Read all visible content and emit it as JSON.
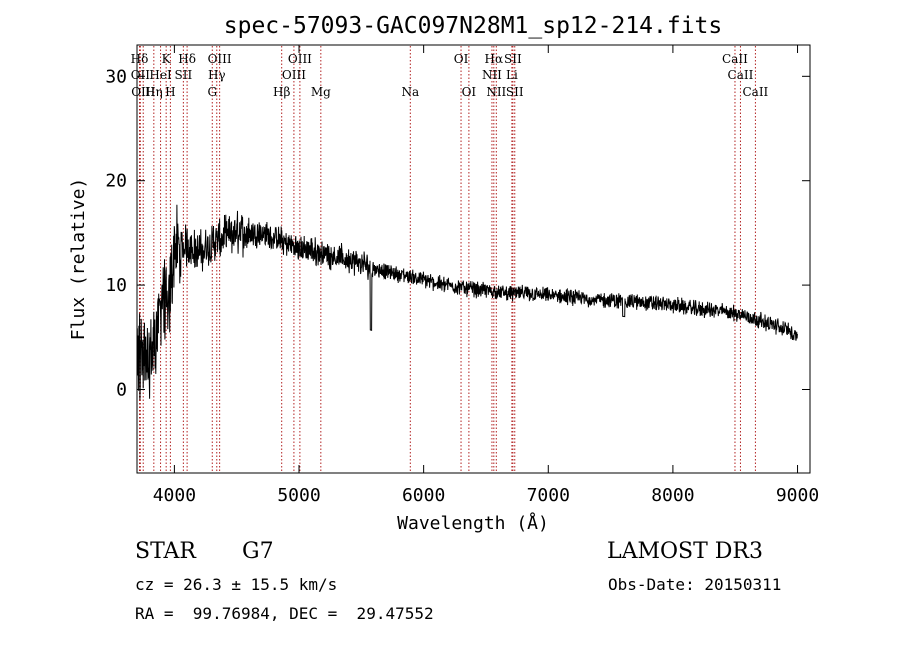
{
  "chart_data": {
    "type": "line",
    "title": "spec-57093-GAC097N28M1_sp12-214.fits",
    "xlabel": "Wavelength (Å)",
    "ylabel": "Flux (relative)",
    "xlim": [
      3700,
      9100
    ],
    "ylim": [
      -8,
      33
    ],
    "x_ticks": [
      4000,
      5000,
      6000,
      7000,
      8000,
      9000
    ],
    "x_tick_labels": [
      "4000",
      "5000",
      "6000",
      "7000",
      "8000",
      "9000"
    ],
    "y_ticks": [
      0,
      10,
      20,
      30
    ],
    "y_tick_labels": [
      "0",
      "10",
      "20",
      "30"
    ],
    "spectrum_envelope": {
      "wavelength": [
        3700,
        3750,
        3800,
        3850,
        3900,
        3950,
        4000,
        4050,
        4100,
        4200,
        4300,
        4400,
        4500,
        4600,
        4700,
        4800,
        4900,
        5000,
        5100,
        5200,
        5300,
        5400,
        5500,
        5600,
        5700,
        5800,
        5900,
        6000,
        6100,
        6200,
        6300,
        6400,
        6500,
        6600,
        6700,
        6800,
        6900,
        7000,
        7100,
        7200,
        7300,
        7400,
        7500,
        7600,
        7700,
        7800,
        7900,
        8000,
        8100,
        8200,
        8300,
        8400,
        8500,
        8600,
        8700,
        8800,
        8900,
        9000
      ],
      "flux": [
        2,
        4,
        3,
        5,
        9,
        7,
        14,
        13,
        14,
        13,
        14,
        14.5,
        15,
        15,
        15,
        14.5,
        14,
        13.5,
        13.3,
        13,
        12.7,
        12.4,
        12,
        11.6,
        11.3,
        11,
        10.8,
        10.5,
        10.2,
        10,
        9.8,
        9.6,
        9.5,
        9.3,
        9.2,
        9.2,
        9.1,
        9,
        8.9,
        8.8,
        8.7,
        8.6,
        8.5,
        8.5,
        8.4,
        8.3,
        8.2,
        8.1,
        7.9,
        7.7,
        7.6,
        7.5,
        7.3,
        7.0,
        6.6,
        6.2,
        5.8,
        5.2
      ],
      "noise_amplitude": 0.6,
      "note": "noisy stellar continuum; deep dip near 5577 Å (sky line) and near 7600 Å"
    },
    "line_markers": [
      {
        "label": "Hδ",
        "wavelength": 3720,
        "row": 1
      },
      {
        "label": "K",
        "wavelength": 3934,
        "row": 1
      },
      {
        "label": "Hδ",
        "wavelength": 4102,
        "row": 1
      },
      {
        "label": "OIII",
        "wavelength": 4363,
        "row": 1
      },
      {
        "label": "OIII",
        "wavelength": 5007,
        "row": 1
      },
      {
        "label": "OI",
        "wavelength": 6300,
        "row": 1
      },
      {
        "label": "Hα",
        "wavelength": 6563,
        "row": 1
      },
      {
        "label": "SII",
        "wavelength": 6716,
        "row": 1
      },
      {
        "label": "CaII",
        "wavelength": 8498,
        "row": 1
      },
      {
        "label": "OII",
        "wavelength": 3727,
        "row": 2
      },
      {
        "label": "HeI",
        "wavelength": 3889,
        "row": 2
      },
      {
        "label": "SII",
        "wavelength": 4072,
        "row": 2
      },
      {
        "label": "Hγ",
        "wavelength": 4340,
        "row": 2
      },
      {
        "label": "OIII",
        "wavelength": 4959,
        "row": 2
      },
      {
        "label": "Na",
        "wavelength": 5893,
        "row": 3
      },
      {
        "label": "NII",
        "wavelength": 6548,
        "row": 2
      },
      {
        "label": "Li",
        "wavelength": 6708,
        "row": 2
      },
      {
        "label": "CaII",
        "wavelength": 8542,
        "row": 2
      },
      {
        "label": "OIII",
        "wavelength": 3750,
        "row": 3
      },
      {
        "label": "Hη",
        "wavelength": 3835,
        "row": 3
      },
      {
        "label": "H",
        "wavelength": 3968,
        "row": 3
      },
      {
        "label": "G",
        "wavelength": 4304,
        "row": 3
      },
      {
        "label": "Hβ",
        "wavelength": 4861,
        "row": 3
      },
      {
        "label": "Mg",
        "wavelength": 5175,
        "row": 3
      },
      {
        "label": "OI",
        "wavelength": 6363,
        "row": 3
      },
      {
        "label": "NII",
        "wavelength": 6583,
        "row": 3
      },
      {
        "label": "SII",
        "wavelength": 6731,
        "row": 3
      },
      {
        "label": "CaII",
        "wavelength": 8662,
        "row": 3
      }
    ],
    "colors": {
      "spectrum": "#000000",
      "markers": "#b22222",
      "axes": "#000000"
    }
  },
  "info": {
    "class": "STAR",
    "subclass": "G7",
    "survey": "LAMOST DR3",
    "cz": "cz = 26.3 ± 15.5 km/s",
    "obs_date": "Obs-Date: 20150311",
    "radec": "RA =  99.76984, DEC =  29.47552"
  }
}
